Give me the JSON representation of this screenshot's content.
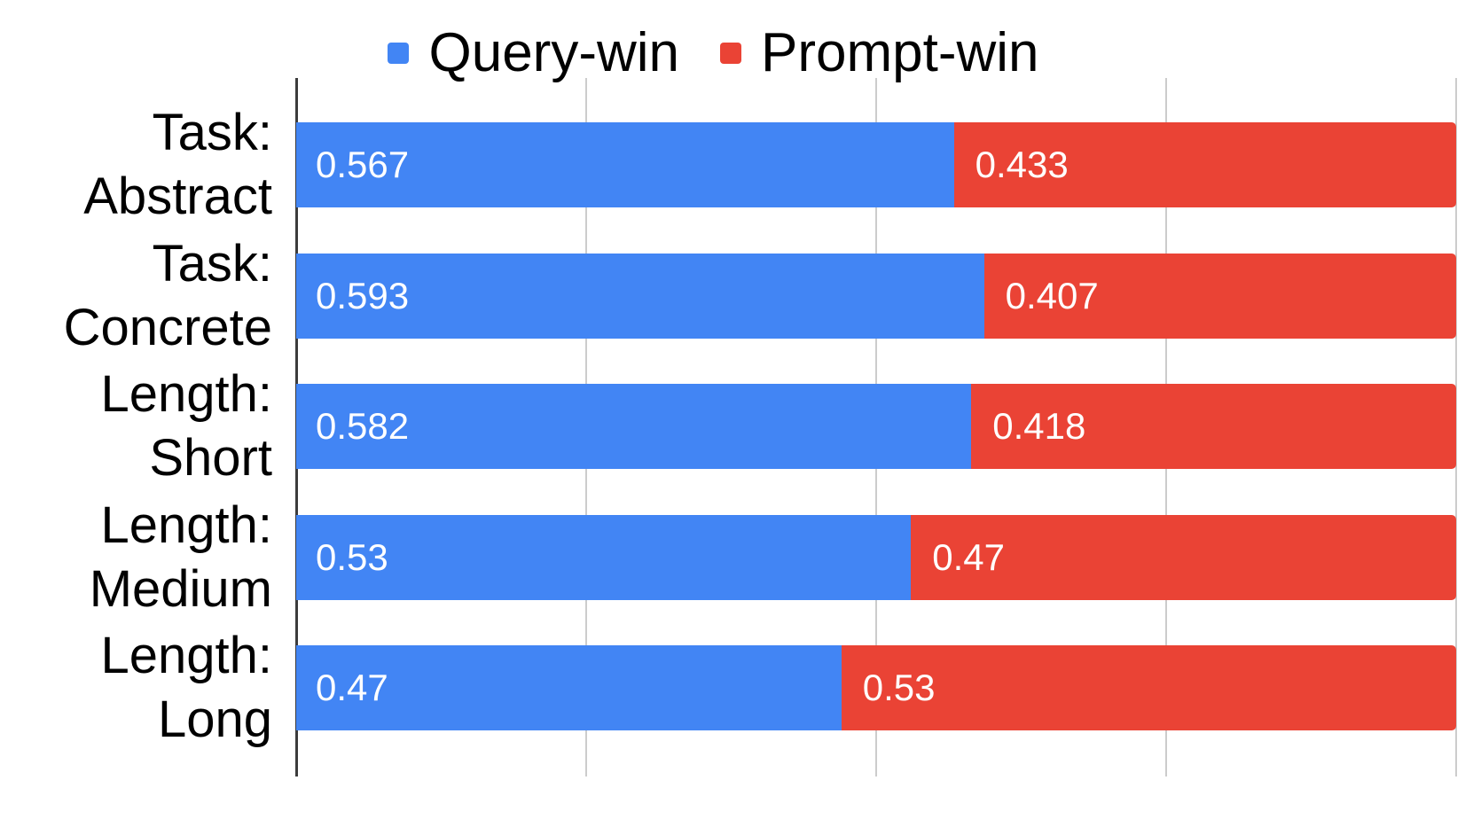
{
  "legend": {
    "items": [
      {
        "label": "Query-win",
        "color": "#4285F4"
      },
      {
        "label": "Prompt-win",
        "color": "#EA4335"
      }
    ]
  },
  "chart_data": {
    "type": "bar",
    "orientation": "horizontal",
    "stacked": true,
    "title": "",
    "xlabel": "",
    "ylabel": "",
    "xlim": [
      0,
      1
    ],
    "grid": true,
    "gridline_positions": [
      0.25,
      0.5,
      0.75,
      1.0
    ],
    "legend_position": "top",
    "categories": [
      [
        "Task:",
        "Abstract"
      ],
      [
        "Task:",
        "Concrete"
      ],
      [
        "Length:",
        "Short"
      ],
      [
        "Length:",
        "Medium"
      ],
      [
        "Length:",
        "Long"
      ]
    ],
    "series": [
      {
        "name": "Query-win",
        "color": "#4285F4",
        "values": [
          0.567,
          0.593,
          0.582,
          0.53,
          0.47
        ]
      },
      {
        "name": "Prompt-win",
        "color": "#EA4335",
        "values": [
          0.433,
          0.407,
          0.418,
          0.47,
          0.53
        ]
      }
    ]
  },
  "colors": {
    "background": "#ffffff",
    "gridline": "#cccccc",
    "axis": "#3c3c3c",
    "value_label": "#ffffff",
    "text": "#000000"
  }
}
